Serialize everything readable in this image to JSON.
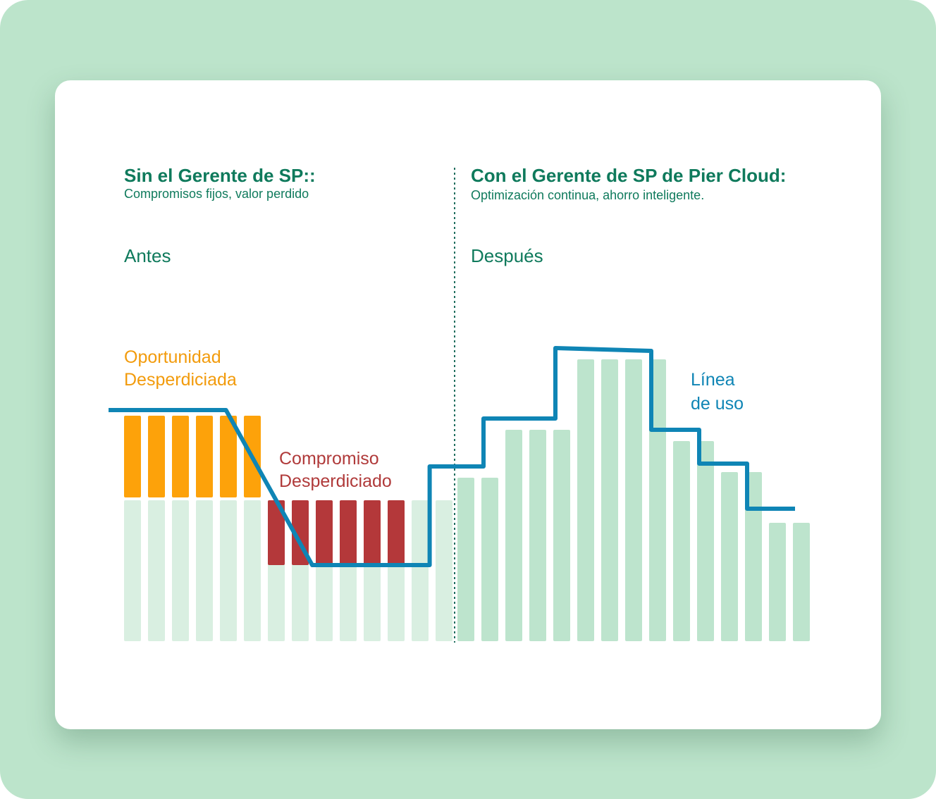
{
  "left": {
    "title": "Sin el Gerente de SP::",
    "subtitle": "Compromisos fijos, valor perdido",
    "period": "Antes",
    "opportunity_label": [
      "Oportunidad",
      "Desperdiciada"
    ],
    "commitment_label": [
      "Compromiso",
      "Desperdiciado"
    ]
  },
  "right": {
    "title": "Con el Gerente de SP de Pier Cloud:",
    "subtitle": "Optimización continua, ahorro inteligente.",
    "period": "Después",
    "usage_label": [
      "Línea",
      "de uso"
    ]
  },
  "colors": {
    "background": "#bce4cb",
    "card": "#ffffff",
    "heading": "#0f7a5c",
    "base_bar": "#d9efe1",
    "after_bar": "#bde4cd",
    "wasted_opportunity": "#fda20a",
    "wasted_commitment": "#b4383a",
    "usage_line": "#0f85b5",
    "divider": "#1f6e5e"
  },
  "chart_data": {
    "type": "bar",
    "ylim": [
      0,
      100
    ],
    "before": {
      "commitment_level": 50,
      "base_bars": 14,
      "opportunity_bars": [
        80,
        80,
        80,
        80,
        80,
        80
      ],
      "wasted_commitment_bars": [
        27,
        27,
        27,
        27,
        27,
        27
      ],
      "usage_line_points": [
        [
          -1,
          82
        ],
        [
          3.9,
          82
        ],
        [
          7.5,
          27
        ],
        [
          12.4,
          27
        ]
      ]
    },
    "after": {
      "values": [
        58,
        58,
        75,
        75,
        75,
        100,
        100,
        100,
        100,
        71,
        71,
        60,
        60,
        42,
        42
      ],
      "usage_line_steps": [
        [
          0,
          62
        ],
        [
          1.5,
          62
        ],
        [
          1.5,
          79
        ],
        [
          4.5,
          79
        ],
        [
          4.5,
          104
        ],
        [
          8.5,
          103
        ],
        [
          8.5,
          75
        ],
        [
          10.5,
          75
        ],
        [
          10.5,
          63
        ],
        [
          12.5,
          63
        ],
        [
          12.5,
          47
        ],
        [
          14.5,
          47
        ]
      ]
    }
  }
}
